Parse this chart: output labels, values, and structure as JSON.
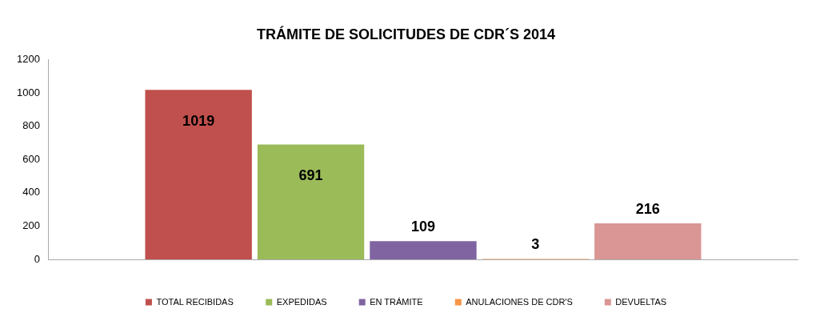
{
  "chart_data": {
    "type": "bar",
    "title": "TRÁMITE DE SOLICITUDES DE CDR´S 2014",
    "categories": [
      null
    ],
    "series": [
      {
        "name": "TOTAL RECIBIDAS",
        "color": "#c0504d",
        "values": [
          1019
        ]
      },
      {
        "name": "EXPEDIDAS",
        "color": "#9bbb59",
        "values": [
          691
        ]
      },
      {
        "name": "EN TRÁMITE",
        "color": "#8064a2",
        "values": [
          109
        ]
      },
      {
        "name": "ANULACIONES DE CDR'S",
        "color": "#f79646",
        "values": [
          3
        ]
      },
      {
        "name": "DEVUELTAS",
        "color": "#d99694",
        "values": [
          216
        ]
      }
    ],
    "ylim": [
      0,
      1200
    ],
    "yticks": [
      0,
      200,
      400,
      600,
      800,
      1000,
      1200
    ],
    "grid": false,
    "legend": "bottom",
    "data_labels": true
  }
}
